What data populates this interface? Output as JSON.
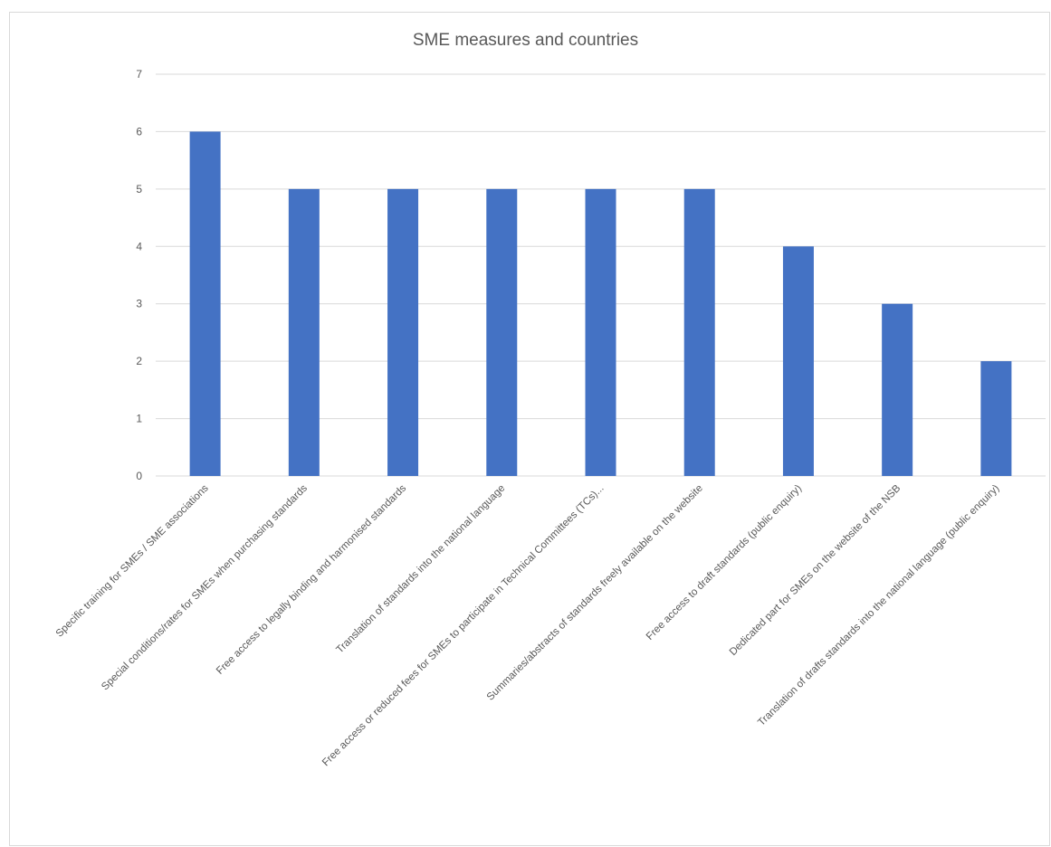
{
  "chart_data": {
    "type": "bar",
    "title": "SME measures and countries",
    "xlabel": "",
    "ylabel": "",
    "categories": [
      "Specific training for SMEs / SME associations",
      "Special conditions/rates for SMEs when purchasing standards",
      "Free access to legally binding and harmonised standards",
      "Translation of standards into the national language",
      "Free access or reduced fees for SMEs to participate in Technical Committees (TCs)...",
      "Summaries/abstracts of standards freely available on the website",
      "Free access to draft standards (public enquiry)",
      "Dedicated part for SMEs on the website of the NSB",
      "Translation of drafts standards into the national language (public enquiry)"
    ],
    "values": [
      6,
      5,
      5,
      5,
      5,
      5,
      4,
      3,
      2
    ],
    "ylim": [
      0,
      7
    ],
    "yticks": [
      0,
      1,
      2,
      3,
      4,
      5,
      6,
      7
    ],
    "grid": true,
    "legend": "none",
    "bar_color": "#4472c4",
    "grid_color": "#d9d9d9",
    "text_color": "#595959"
  }
}
